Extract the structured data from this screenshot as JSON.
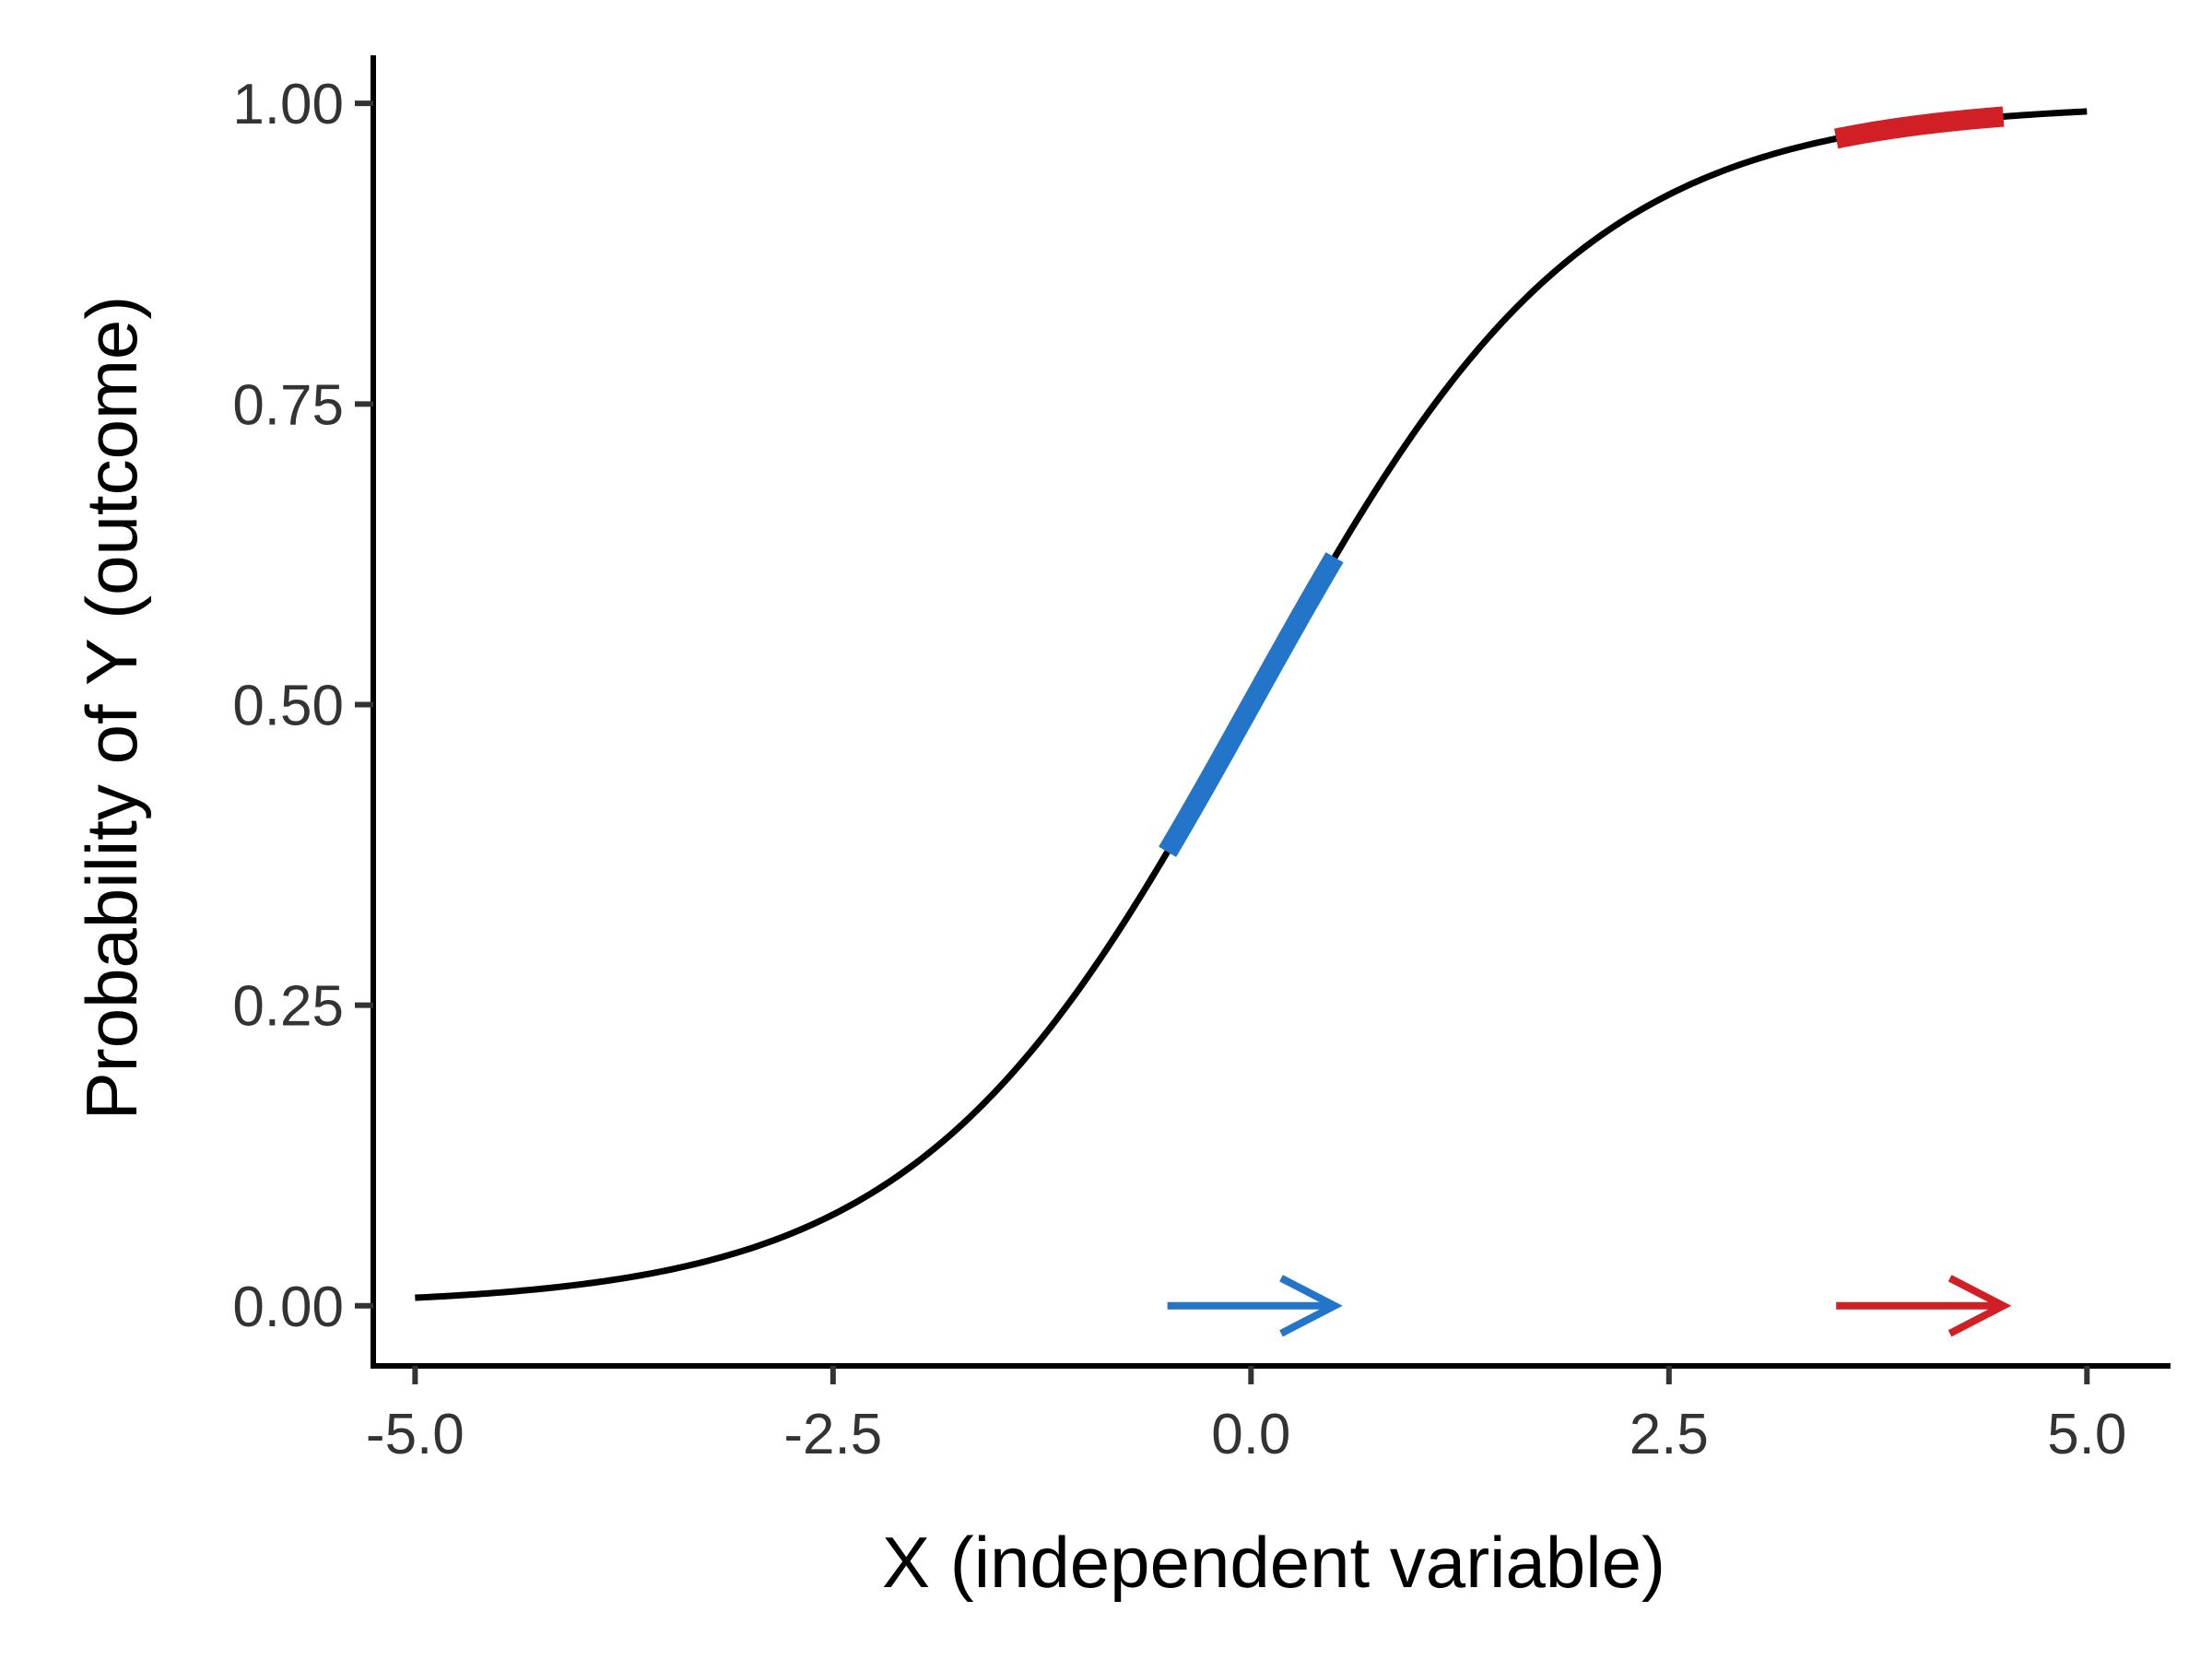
{
  "chart_data": {
    "type": "line",
    "title": "",
    "xlabel": "X (independent variable)",
    "ylabel": "Probability of Y (outcome)",
    "xlim": [
      -5.25,
      5.5
    ],
    "ylim": [
      -0.05,
      1.04
    ],
    "xticks": [
      -5.0,
      -2.5,
      0.0,
      2.5,
      5.0
    ],
    "xtick_labels": [
      "-5.0",
      "-2.5",
      "0.0",
      "2.5",
      "5.0"
    ],
    "yticks": [
      0.0,
      0.25,
      0.5,
      0.75,
      1.0
    ],
    "ytick_labels": [
      "0.00",
      "0.25",
      "0.50",
      "0.75",
      "1.00"
    ],
    "grid": false,
    "legend": "none",
    "series": [
      {
        "function": "logistic",
        "x_range": [
          -5,
          5
        ],
        "color": "#000000"
      }
    ],
    "highlights": [
      {
        "x_range": [
          -0.5,
          0.5
        ],
        "color": "#2375c9"
      },
      {
        "x_range": [
          3.5,
          4.5
        ],
        "color": "#d11f26"
      }
    ],
    "arrows": [
      {
        "x_from": -0.5,
        "x_to": 0.5,
        "y": 0.0,
        "color": "#2375c9"
      },
      {
        "x_from": 3.5,
        "x_to": 4.5,
        "y": 0.0,
        "color": "#d11f26"
      }
    ]
  }
}
